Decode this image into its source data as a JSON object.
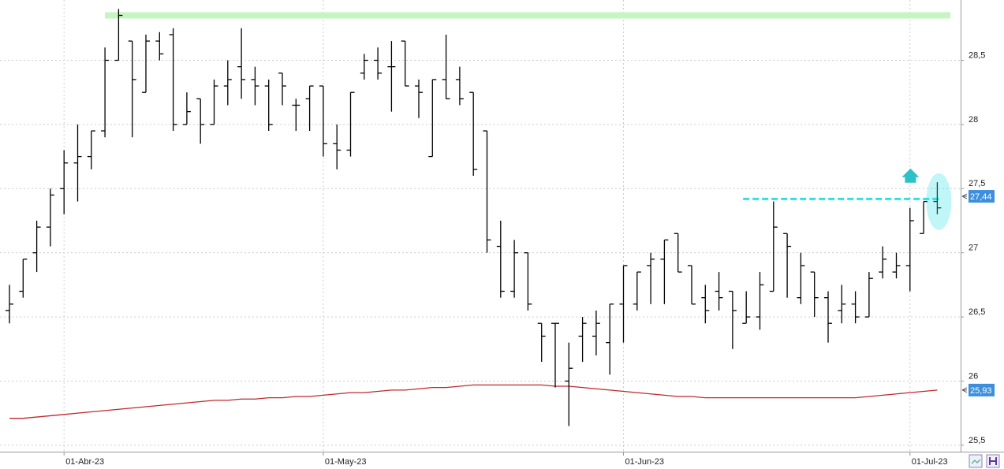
{
  "chart_data": {
    "type": "ohlc",
    "categories": [
      null,
      null,
      null,
      null,
      "01-Abr-23",
      null,
      null,
      null,
      null,
      null,
      null,
      null,
      null,
      null,
      null,
      null,
      null,
      null,
      null,
      null,
      null,
      null,
      null,
      "01-May-23",
      null,
      null,
      null,
      null,
      null,
      null,
      null,
      null,
      null,
      null,
      null,
      null,
      null,
      null,
      null,
      null,
      null,
      null,
      null,
      null,
      null,
      "01-Jun-23",
      null,
      null,
      null,
      null,
      null,
      null,
      null,
      null,
      null,
      null,
      null,
      null,
      null,
      null,
      null,
      null,
      null,
      null,
      null,
      null,
      "01-Jul-23",
      null,
      null
    ],
    "ohlc": [
      [
        26.55,
        26.75,
        26.45,
        26.6
      ],
      [
        26.7,
        26.95,
        26.65,
        26.95
      ],
      [
        27.0,
        27.25,
        26.85,
        27.2
      ],
      [
        27.2,
        27.5,
        27.05,
        27.45
      ],
      [
        27.5,
        27.8,
        27.3,
        27.7
      ],
      [
        27.7,
        28.0,
        27.4,
        27.75
      ],
      [
        27.75,
        27.95,
        27.65,
        27.95
      ],
      [
        27.95,
        28.6,
        27.9,
        28.5
      ],
      [
        28.5,
        28.9,
        28.5,
        28.85
      ],
      [
        28.65,
        28.65,
        27.9,
        28.35
      ],
      [
        28.25,
        28.7,
        28.25,
        28.65
      ],
      [
        28.65,
        28.72,
        28.5,
        28.55
      ],
      [
        28.7,
        28.75,
        27.95,
        28.0
      ],
      [
        28.0,
        28.25,
        28.0,
        28.1
      ],
      [
        28.2,
        28.2,
        27.85,
        28.0
      ],
      [
        28.0,
        28.35,
        28.0,
        28.3
      ],
      [
        28.3,
        28.5,
        28.15,
        28.35
      ],
      [
        28.45,
        28.75,
        28.2,
        28.35
      ],
      [
        28.35,
        28.45,
        28.15,
        28.3
      ],
      [
        28.3,
        28.35,
        27.95,
        28.0
      ],
      [
        28.4,
        28.4,
        28.15,
        28.3
      ],
      [
        28.15,
        28.2,
        27.95,
        28.15
      ],
      [
        28.2,
        28.3,
        27.95,
        28.3
      ],
      [
        28.3,
        28.3,
        27.75,
        27.85
      ],
      [
        27.85,
        28.0,
        27.65,
        27.8
      ],
      [
        27.8,
        28.25,
        27.75,
        28.25
      ],
      [
        28.4,
        28.55,
        28.35,
        28.5
      ],
      [
        28.5,
        28.6,
        28.35,
        28.4
      ],
      [
        28.45,
        28.65,
        28.1,
        28.45
      ],
      [
        28.65,
        28.65,
        28.3,
        28.3
      ],
      [
        28.3,
        28.35,
        28.05,
        28.25
      ],
      [
        27.75,
        28.35,
        27.75,
        28.35
      ],
      [
        28.35,
        28.7,
        28.2,
        28.2
      ],
      [
        28.35,
        28.45,
        28.15,
        28.2
      ],
      [
        28.25,
        28.25,
        27.6,
        27.65
      ],
      [
        27.95,
        27.95,
        27.0,
        27.1
      ],
      [
        27.05,
        27.25,
        26.65,
        26.7
      ],
      [
        26.7,
        27.1,
        26.65,
        27.0
      ],
      [
        27.0,
        27.0,
        26.55,
        26.6
      ],
      [
        26.45,
        26.45,
        26.15,
        26.35
      ],
      [
        26.45,
        26.45,
        25.95,
        26.45
      ],
      [
        26.0,
        26.3,
        25.65,
        26.1
      ],
      [
        26.35,
        26.5,
        26.15,
        26.45
      ],
      [
        26.35,
        26.55,
        26.2,
        26.45
      ],
      [
        26.3,
        26.6,
        26.05,
        26.6
      ],
      [
        26.6,
        26.9,
        26.3,
        26.9
      ],
      [
        26.6,
        26.85,
        26.55,
        26.85
      ],
      [
        26.9,
        27.0,
        26.6,
        26.95
      ],
      [
        26.95,
        27.1,
        26.6,
        27.1
      ],
      [
        27.15,
        27.15,
        26.85,
        26.85
      ],
      [
        26.9,
        26.9,
        26.6,
        26.6
      ],
      [
        26.65,
        26.75,
        26.45,
        26.55
      ],
      [
        26.7,
        26.85,
        26.55,
        26.65
      ],
      [
        26.7,
        26.7,
        26.25,
        26.55
      ],
      [
        26.45,
        26.7,
        26.45,
        26.5
      ],
      [
        26.5,
        26.85,
        26.4,
        26.75
      ],
      [
        26.7,
        27.4,
        26.7,
        27.2
      ],
      [
        27.15,
        27.15,
        26.65,
        27.05
      ],
      [
        26.65,
        27.0,
        26.6,
        26.9
      ],
      [
        26.85,
        26.85,
        26.5,
        26.65
      ],
      [
        26.65,
        26.7,
        26.3,
        26.45
      ],
      [
        26.55,
        26.75,
        26.45,
        26.6
      ],
      [
        26.6,
        26.7,
        26.45,
        26.5
      ],
      [
        26.5,
        26.85,
        26.5,
        26.8
      ],
      [
        26.85,
        27.05,
        26.8,
        26.95
      ],
      [
        26.85,
        27.0,
        26.8,
        26.9
      ],
      [
        26.9,
        27.35,
        26.7,
        27.25
      ],
      [
        27.15,
        27.4,
        27.15,
        27.4
      ],
      [
        27.4,
        27.55,
        27.3,
        27.35
      ]
    ],
    "moving_average": {
      "color": "#c0282d",
      "values": [
        25.71,
        25.71,
        25.72,
        25.73,
        25.74,
        25.75,
        25.76,
        25.77,
        25.78,
        25.79,
        25.8,
        25.81,
        25.82,
        25.83,
        25.84,
        25.85,
        25.85,
        25.86,
        25.86,
        25.87,
        25.87,
        25.88,
        25.88,
        25.89,
        25.9,
        25.91,
        25.91,
        25.92,
        25.93,
        25.93,
        25.94,
        25.95,
        25.95,
        25.96,
        25.97,
        25.97,
        25.97,
        25.97,
        25.97,
        25.97,
        25.96,
        25.96,
        25.95,
        25.94,
        25.93,
        25.92,
        25.91,
        25.9,
        25.89,
        25.88,
        25.88,
        25.87,
        25.87,
        25.87,
        25.87,
        25.87,
        25.87,
        25.87,
        25.87,
        25.87,
        25.87,
        25.87,
        25.87,
        25.88,
        25.89,
        25.9,
        25.91,
        25.92,
        25.93
      ]
    },
    "resistance": {
      "value": 28.85,
      "color": "#c6f5c2"
    },
    "support": {
      "value": 27.42,
      "color": "#2ee0e8"
    },
    "markers": [
      {
        "value": 27.44,
        "label": "27,44",
        "color": "#3d8fdc"
      },
      {
        "value": 25.93,
        "label": "25,93",
        "color": "#3d8fdc"
      }
    ],
    "ylim": [
      25.45,
      28.97
    ],
    "yticks": [
      {
        "value": 25.5,
        "label": "25,5"
      },
      26,
      {
        "value": 26.5,
        "label": "26,5"
      },
      27,
      {
        "value": 27.5,
        "label": "27,5"
      },
      28,
      {
        "value": 28.5,
        "label": "28,5"
      }
    ],
    "grid": true,
    "bar_color": "#000000"
  }
}
